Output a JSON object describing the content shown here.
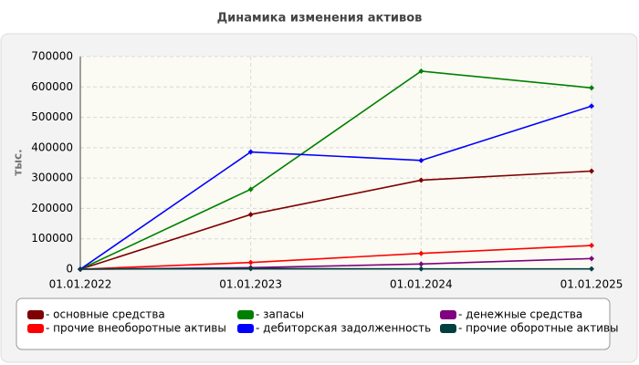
{
  "chart_data": {
    "type": "line",
    "title": "Динамика изменения активов",
    "y_label": "тыс.",
    "categories": [
      "01.01.2022",
      "01.01.2023",
      "01.01.2024",
      "01.01.2025"
    ],
    "series": [
      {
        "name": "- основные средства",
        "color": "#7f0000",
        "values": [
          0,
          180000,
          293000,
          323000
        ]
      },
      {
        "name": "- запасы",
        "color": "#008000",
        "values": [
          0,
          263000,
          652000,
          597000
        ]
      },
      {
        "name": "- денежные средства",
        "color": "#800080",
        "values": [
          0,
          5000,
          17000,
          35000
        ]
      },
      {
        "name": "- прочие внеоборотные активы",
        "color": "#ff0000",
        "values": [
          0,
          22000,
          52000,
          78000
        ]
      },
      {
        "name": "- дебиторская задолженность",
        "color": "#0000ff",
        "values": [
          0,
          386000,
          358000,
          537000
        ]
      },
      {
        "name": "- прочие оборотные активы",
        "color": "#004040",
        "values": [
          0,
          2000,
          1000,
          1000
        ]
      }
    ],
    "ylim": [
      0,
      700000
    ],
    "yticks": [
      0,
      100000,
      200000,
      300000,
      400000,
      500000,
      600000,
      700000
    ],
    "grid": true
  }
}
